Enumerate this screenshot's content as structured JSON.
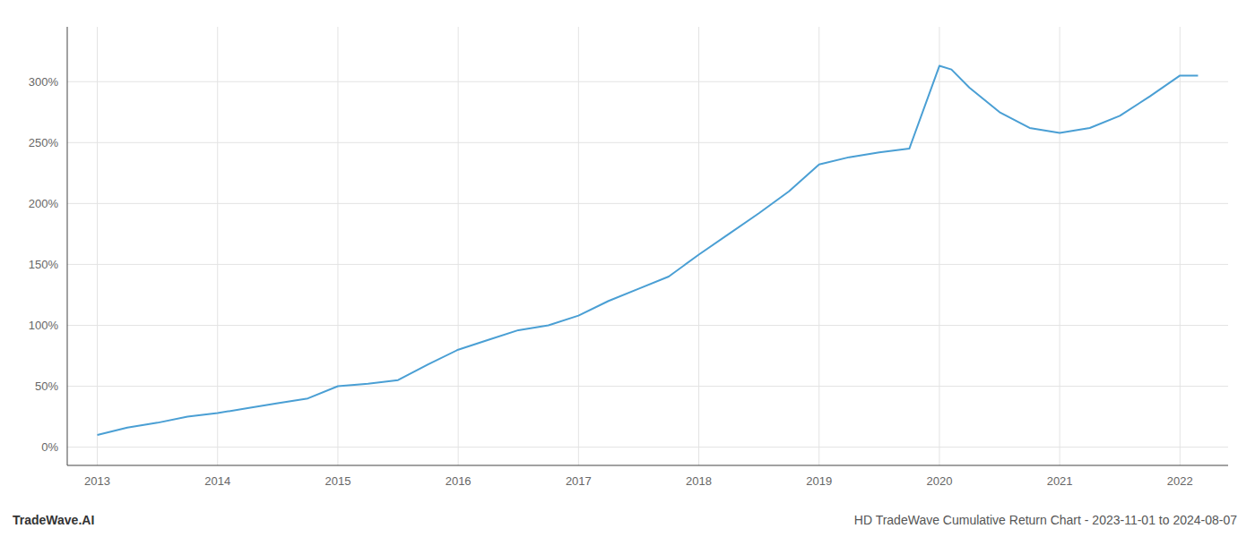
{
  "chart_data": {
    "type": "line",
    "title": "HD TradeWave Cumulative Return Chart - 2023-11-01 to 2024-08-07",
    "annotations": [
      "TradeWave.AI"
    ],
    "x": [
      2013.0,
      2013.25,
      2013.5,
      2013.75,
      2014.0,
      2014.25,
      2014.5,
      2014.75,
      2015.0,
      2015.25,
      2015.5,
      2015.75,
      2016.0,
      2016.25,
      2016.5,
      2016.75,
      2017.0,
      2017.25,
      2017.5,
      2017.75,
      2018.0,
      2018.25,
      2018.5,
      2018.75,
      2019.0,
      2019.25,
      2019.5,
      2019.75,
      2020.0,
      2020.1,
      2020.25,
      2020.5,
      2020.75,
      2021.0,
      2021.25,
      2021.5,
      2021.75,
      2022.0,
      2022.15
    ],
    "values": [
      10,
      16,
      20,
      25,
      28,
      32,
      36,
      40,
      50,
      52,
      55,
      68,
      80,
      88,
      96,
      100,
      108,
      120,
      130,
      140,
      158,
      175,
      192,
      210,
      232,
      238,
      242,
      245,
      313,
      310,
      295,
      275,
      262,
      258,
      262,
      272,
      288,
      305,
      305
    ],
    "color": "#4a9fd4",
    "grid": true,
    "xlim": [
      2012.75,
      2022.4
    ],
    "ylim": [
      -15,
      345
    ],
    "xticks": [
      2013,
      2014,
      2015,
      2016,
      2017,
      2018,
      2019,
      2020,
      2021,
      2022
    ],
    "yticks": [
      {
        "value": 0,
        "label": "0%"
      },
      {
        "value": 50,
        "label": "50%"
      },
      {
        "value": 100,
        "label": "100%"
      },
      {
        "value": 150,
        "label": "150%"
      },
      {
        "value": 200,
        "label": "200%"
      },
      {
        "value": 250,
        "label": "250%"
      },
      {
        "value": 300,
        "label": "300%"
      }
    ]
  }
}
